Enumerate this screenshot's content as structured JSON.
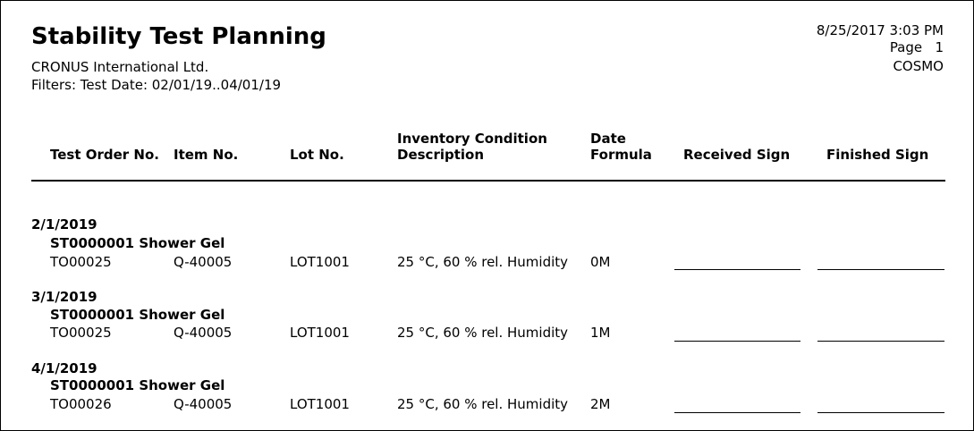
{
  "report": {
    "title": "Stability Test Planning",
    "company": "CRONUS International Ltd.",
    "filters": "Filters: Test Date: 02/01/19..04/01/19",
    "datetime": "8/25/2017 3:03 PM",
    "page_label": "Page",
    "page_number": "1",
    "user": "COSMO"
  },
  "columns": {
    "test_order": "Test Order No.",
    "item_no": "Item No.",
    "lot_no": "Lot No.",
    "inv_cond_1": "Inventory Condition",
    "inv_cond_2": "Description",
    "date_formula_1": "Date",
    "date_formula_2": "Formula",
    "received_sign": "Received Sign",
    "finished_sign": "Finished Sign"
  },
  "groups": [
    {
      "date": "2/1/2019",
      "item": "ST0000001 Shower Gel",
      "test_order": "TO00025",
      "item_no": "Q-40005",
      "lot_no": "LOT1001",
      "condition": "25 °C, 60 % rel. Humidity",
      "date_formula": "0M"
    },
    {
      "date": "3/1/2019",
      "item": "ST0000001 Shower Gel",
      "test_order": "TO00025",
      "item_no": "Q-40005",
      "lot_no": "LOT1001",
      "condition": "25 °C, 60 % rel. Humidity",
      "date_formula": "1M"
    },
    {
      "date": "4/1/2019",
      "item": "ST0000001 Shower Gel",
      "test_order": "TO00026",
      "item_no": "Q-40005",
      "lot_no": "LOT1001",
      "condition": "25 °C, 60 % rel. Humidity",
      "date_formula": "2M"
    }
  ]
}
